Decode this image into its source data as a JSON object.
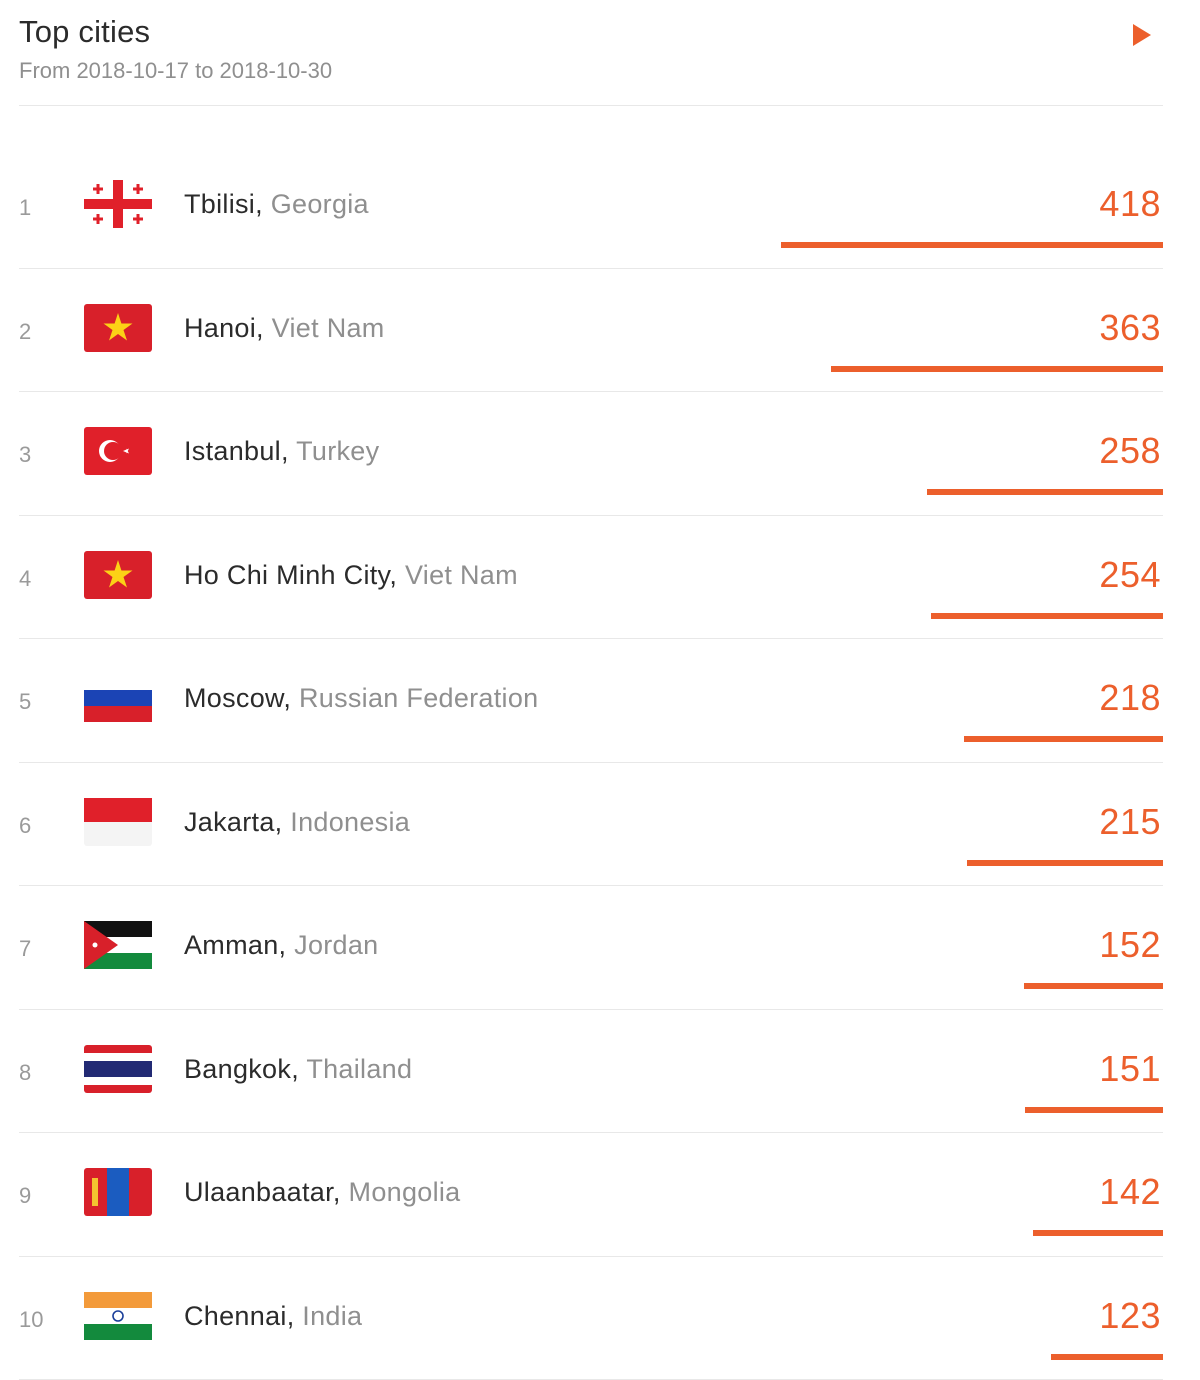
{
  "header": {
    "title": "Top cities",
    "subtitle": "From 2018-10-17 to 2018-10-30",
    "next_icon": "play-arrow-icon",
    "accent_color": "#ec5f2c"
  },
  "cities": [
    {
      "rank": "1",
      "city": "Tbilisi",
      "country": "Georgia",
      "count": "418",
      "value": 418,
      "flag": "georgia-flag-icon"
    },
    {
      "rank": "2",
      "city": "Hanoi",
      "country": "Viet Nam",
      "count": "363",
      "value": 363,
      "flag": "vietnam-flag-icon"
    },
    {
      "rank": "3",
      "city": "Istanbul",
      "country": "Turkey",
      "count": "258",
      "value": 258,
      "flag": "turkey-flag-icon"
    },
    {
      "rank": "4",
      "city": "Ho Chi Minh City",
      "country": "Viet Nam",
      "count": "254",
      "value": 254,
      "flag": "vietnam-flag-icon"
    },
    {
      "rank": "5",
      "city": "Moscow",
      "country": "Russian Federation",
      "count": "218",
      "value": 218,
      "flag": "russia-flag-icon"
    },
    {
      "rank": "6",
      "city": "Jakarta",
      "country": "Indonesia",
      "count": "215",
      "value": 215,
      "flag": "indonesia-flag-icon"
    },
    {
      "rank": "7",
      "city": "Amman",
      "country": "Jordan",
      "count": "152",
      "value": 152,
      "flag": "jordan-flag-icon"
    },
    {
      "rank": "8",
      "city": "Bangkok",
      "country": "Thailand",
      "count": "151",
      "value": 151,
      "flag": "thailand-flag-icon"
    },
    {
      "rank": "9",
      "city": "Ulaanbaatar",
      "country": "Mongolia",
      "count": "142",
      "value": 142,
      "flag": "mongolia-flag-icon"
    },
    {
      "rank": "10",
      "city": "Chennai",
      "country": "India",
      "count": "123",
      "value": 123,
      "flag": "india-flag-icon"
    }
  ]
}
